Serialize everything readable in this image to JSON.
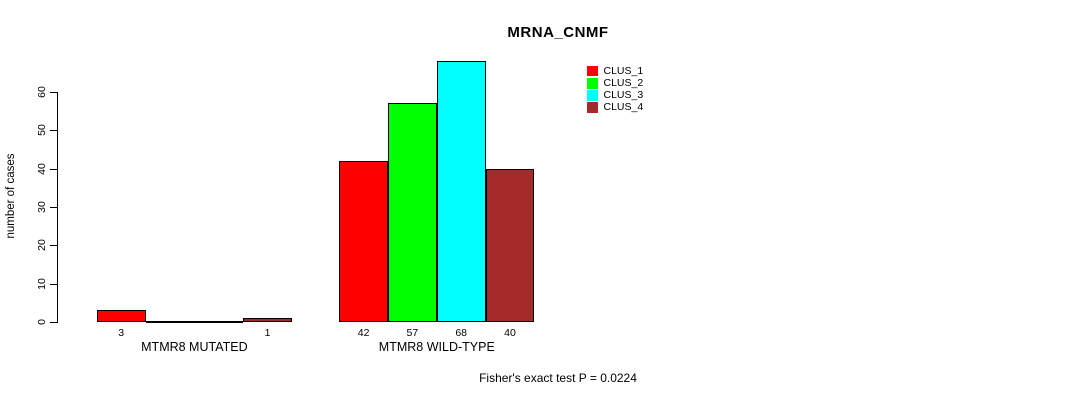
{
  "chart_data": {
    "type": "bar",
    "title": "MRNA_CNMF",
    "xlabel": "",
    "ylabel": "number of cases",
    "ylim": [
      0,
      60
    ],
    "yticks": [
      0,
      10,
      20,
      30,
      40,
      50,
      60
    ],
    "grid": false,
    "legend_position": "top-right",
    "categories": [
      "MTMR8 MUTATED",
      "MTMR8 WILD-TYPE"
    ],
    "series": [
      {
        "name": "CLUS_1",
        "color": "#ff0000",
        "values": [
          3,
          42
        ]
      },
      {
        "name": "CLUS_2",
        "color": "#00ff00",
        "values": [
          0,
          57
        ]
      },
      {
        "name": "CLUS_3",
        "color": "#00ffff",
        "values": [
          0,
          68
        ]
      },
      {
        "name": "CLUS_4",
        "color": "#a52a2a",
        "values": [
          1,
          40
        ]
      }
    ],
    "bar_value_labels": [
      [
        "3",
        "",
        "",
        "1"
      ],
      [
        "42",
        "57",
        "68",
        "40"
      ]
    ],
    "annotation": "Fisher's exact test P = 0.0224"
  }
}
